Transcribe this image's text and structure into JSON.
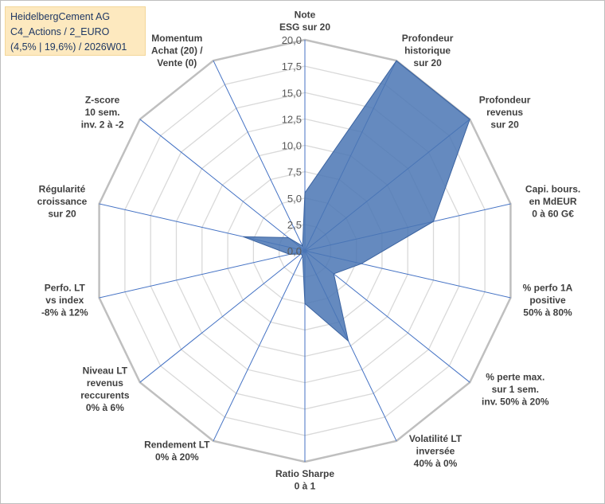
{
  "title_lines": [
    "HeidelbergCement AG",
    "C4_Actions / 2_EURO",
    "(4,5% | 19,6%) / 2026W01"
  ],
  "colors": {
    "series_fill": "#4a76b4",
    "series_stroke": "#3b63a0",
    "spokes": "#4472c4",
    "grid": "#d9d9d9",
    "outer_ring": "#bfbfbf",
    "title_bg": "#fde9bf"
  },
  "chart_data": {
    "type": "radar",
    "title": "HeidelbergCement AG",
    "rmin": 0,
    "rmax": 20,
    "ticks": [
      "0,0",
      "2,5",
      "5,0",
      "7,5",
      "10,0",
      "12,5",
      "15,0",
      "17,5",
      "20,0"
    ],
    "tick_values": [
      0,
      2.5,
      5,
      7.5,
      10,
      12.5,
      15,
      17.5,
      20
    ],
    "axes": [
      {
        "label": [
          "Note",
          "ESG sur 20"
        ],
        "value": 5.5
      },
      {
        "label": [
          "Profondeur",
          "historique",
          "sur 20"
        ],
        "value": 20
      },
      {
        "label": [
          "Profondeur",
          "revenus",
          "sur 20"
        ],
        "value": 20
      },
      {
        "label": [
          "Capi. bours.",
          "en MdEUR",
          "0 à 60 G€"
        ],
        "value": 12.5
      },
      {
        "label": [
          "% perfo 1A",
          "positive",
          "50% à 80%"
        ],
        "value": 5.5
      },
      {
        "label": [
          "% perte max.",
          "sur 1 sem.",
          "inv. 50% à 20%"
        ],
        "value": 3.5
      },
      {
        "label": [
          "Volatilité LT",
          "inversée",
          "40% à 0%"
        ],
        "value": 9.5
      },
      {
        "label": [
          "Ratio Sharpe",
          "0 à 1"
        ],
        "value": 5.0
      },
      {
        "label": [
          "Rendement LT",
          "0% à 20%"
        ],
        "value": 0.5
      },
      {
        "label": [
          "Niveau LT",
          "revenus",
          "reccurents",
          "0% à 6%"
        ],
        "value": 0.5
      },
      {
        "label": [
          "Perfo. LT",
          "vs index",
          "-8% à 12%"
        ],
        "value": 1.5
      },
      {
        "label": [
          "Régularité",
          "croissance",
          "sur 20"
        ],
        "value": 6.0
      },
      {
        "label": [
          "Z-score",
          "10 sem.",
          "inv. 2 à -2"
        ],
        "value": 2.0
      },
      {
        "label": [
          "Momentum",
          "Achat (20) /",
          "Vente (0)"
        ],
        "value": 0.5
      }
    ]
  }
}
